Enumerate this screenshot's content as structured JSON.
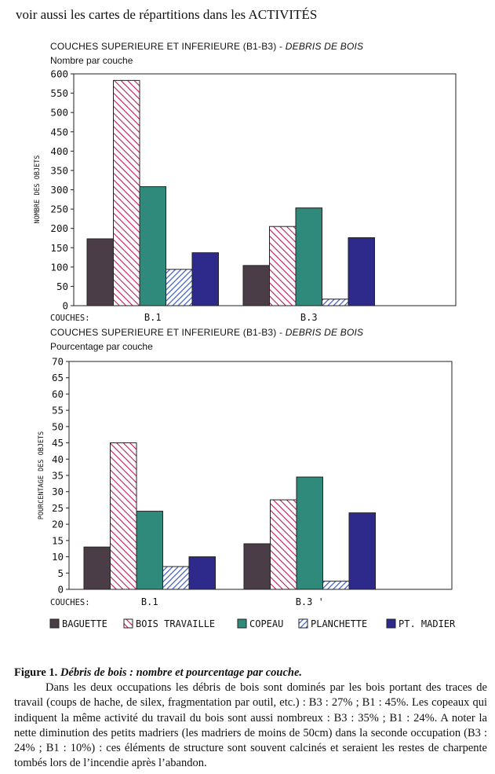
{
  "header_note": "voir aussi les cartes de répartitions dans les ACTIVITÉS",
  "colors": {
    "BAGUETTE": "#4a3d48",
    "BOIS TRAVAILLE": "#c2185b",
    "COPEAU": "#2f8a7c",
    "PLANCHETTE": "#3a5bc4",
    "PT. MADIER": "#2e2a8c"
  },
  "legend": [
    "BAGUETTE",
    "BOIS TRAVAILLE",
    "COPEAU",
    "PLANCHETTE",
    "PT. MADIER"
  ],
  "chart_data": [
    {
      "type": "bar",
      "title": "COUCHES SUPERIEURE ET INFERIEURE (B1-B3) - ",
      "title_italic": "DEBRIS DE BOIS",
      "subtitle": "Nombre par couche",
      "xlabel": "COUCHES:",
      "ylabel": "NOMBRE DES OBJETS",
      "categories": [
        "B.1",
        "B.3"
      ],
      "ylim": [
        0,
        600
      ],
      "yticks": [
        0,
        50,
        100,
        150,
        200,
        250,
        300,
        350,
        400,
        450,
        500,
        550,
        600
      ],
      "series": [
        {
          "name": "BAGUETTE",
          "values": [
            173,
            104
          ]
        },
        {
          "name": "BOIS TRAVAILLE",
          "values": [
            583,
            205
          ]
        },
        {
          "name": "COPEAU",
          "values": [
            308,
            253
          ]
        },
        {
          "name": "PLANCHETTE",
          "values": [
            94,
            17
          ]
        },
        {
          "name": "PT. MADIER",
          "values": [
            137,
            176
          ]
        }
      ]
    },
    {
      "type": "bar",
      "title": "COUCHES SUPERIEURE ET INFERIEURE (B1-B3) - ",
      "title_italic": "DEBRIS DE BOIS",
      "subtitle": "Pourcentage par couche",
      "xlabel": "COUCHES:",
      "ylabel": "POURCENTAGE DES OBJETS",
      "categories": [
        "B.1",
        "B.3 '"
      ],
      "ylim": [
        0,
        70
      ],
      "yticks": [
        0,
        5,
        10,
        15,
        20,
        25,
        30,
        35,
        40,
        45,
        50,
        55,
        60,
        65,
        70
      ],
      "series": [
        {
          "name": "BAGUETTE",
          "values": [
            13,
            14
          ]
        },
        {
          "name": "BOIS TRAVAILLE",
          "values": [
            45,
            27.5
          ]
        },
        {
          "name": "COPEAU",
          "values": [
            24,
            34.5
          ]
        },
        {
          "name": "PLANCHETTE",
          "values": [
            7,
            2.5
          ]
        },
        {
          "name": "PT. MADIER",
          "values": [
            10,
            23.5
          ]
        }
      ]
    }
  ],
  "caption": {
    "label": "Figure 1.",
    "title": "Débris  de bois : nombre et pourcentage par couche.",
    "text": "Dans les deux occupations les débris de bois sont dominés par les bois portant des traces de travail (coups de hache, de silex, fragmentation par outil, etc.) : B3 : 27% ; B1 : 45%. Les copeaux qui indiquent la même activité du travail du bois sont aussi nombreux : B3 : 35% ; B1 : 24%. A noter la nette diminution des petits madriers (les madriers de moins de 50cm) dans la seconde occupation (B3 : 24% ; B1 : 10%) : ces éléments de structure sont souvent calcinés et seraient les restes de charpente tombés lors de l’incendie après l’abandon."
  }
}
